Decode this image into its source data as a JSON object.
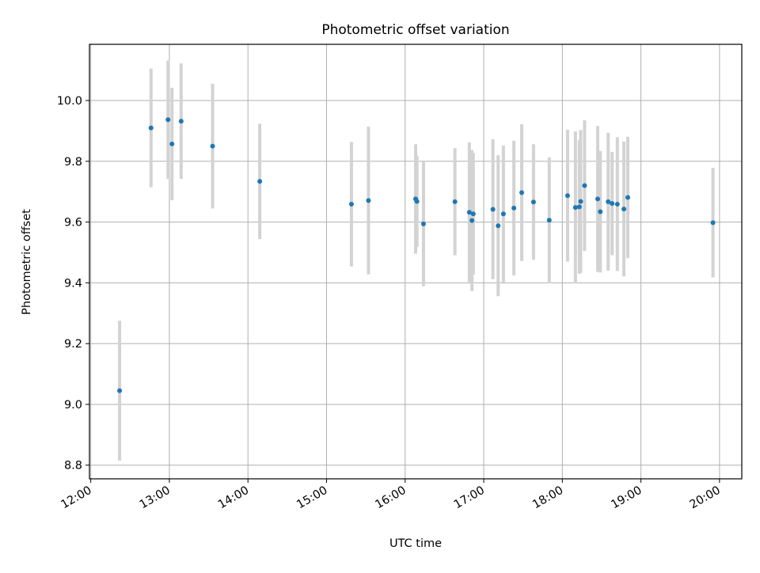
{
  "chart_data": {
    "type": "scatter",
    "title": "Photometric offset variation",
    "xlabel": "UTC time",
    "ylabel": "Photometric offset",
    "x_ticks": [
      "12:00",
      "13:00",
      "14:00",
      "15:00",
      "16:00",
      "17:00",
      "18:00",
      "19:00",
      "20:00"
    ],
    "y_ticks": [
      "8.8",
      "9.0",
      "9.2",
      "9.4",
      "9.6",
      "9.8",
      "10.0"
    ],
    "xlim": [
      "11:59",
      "20:17"
    ],
    "ylim": [
      8.755,
      10.185
    ],
    "grid": true,
    "colors": {
      "point": "#1f77b4",
      "errorbar": "#d3d3d3",
      "grid": "#b0b0b0"
    },
    "points": [
      {
        "x": "12:22",
        "y": 9.045,
        "yerr": 0.23
      },
      {
        "x": "12:46",
        "y": 9.91,
        "yerr": 0.195
      },
      {
        "x": "12:59",
        "y": 9.937,
        "yerr": 0.195
      },
      {
        "x": "13:02",
        "y": 9.857,
        "yerr": 0.185
      },
      {
        "x": "13:09",
        "y": 9.932,
        "yerr": 0.19
      },
      {
        "x": "13:33",
        "y": 9.85,
        "yerr": 0.205
      },
      {
        "x": "14:09",
        "y": 9.734,
        "yerr": 0.19
      },
      {
        "x": "15:19",
        "y": 9.659,
        "yerr": 0.205
      },
      {
        "x": "15:32",
        "y": 9.671,
        "yerr": 0.243
      },
      {
        "x": "16:08",
        "y": 9.676,
        "yerr": 0.18
      },
      {
        "x": "16:09",
        "y": 9.668,
        "yerr": 0.15
      },
      {
        "x": "16:14",
        "y": 9.594,
        "yerr": 0.205
      },
      {
        "x": "16:38",
        "y": 9.667,
        "yerr": 0.176
      },
      {
        "x": "16:49",
        "y": 9.632,
        "yerr": 0.23
      },
      {
        "x": "16:51",
        "y": 9.605,
        "yerr": 0.232
      },
      {
        "x": "16:52",
        "y": 9.627,
        "yerr": 0.2
      },
      {
        "x": "17:07",
        "y": 9.642,
        "yerr": 0.23
      },
      {
        "x": "17:11",
        "y": 9.588,
        "yerr": 0.232
      },
      {
        "x": "17:15",
        "y": 9.627,
        "yerr": 0.225
      },
      {
        "x": "17:23",
        "y": 9.646,
        "yerr": 0.222
      },
      {
        "x": "17:29",
        "y": 9.697,
        "yerr": 0.225
      },
      {
        "x": "17:38",
        "y": 9.666,
        "yerr": 0.19
      },
      {
        "x": "17:50",
        "y": 9.606,
        "yerr": 0.207
      },
      {
        "x": "18:04",
        "y": 9.687,
        "yerr": 0.217
      },
      {
        "x": "18:10",
        "y": 9.648,
        "yerr": 0.25
      },
      {
        "x": "18:13",
        "y": 9.65,
        "yerr": 0.22
      },
      {
        "x": "18:14",
        "y": 9.668,
        "yerr": 0.235
      },
      {
        "x": "18:17",
        "y": 9.72,
        "yerr": 0.215
      },
      {
        "x": "18:27",
        "y": 9.676,
        "yerr": 0.24
      },
      {
        "x": "18:29",
        "y": 9.634,
        "yerr": 0.2
      },
      {
        "x": "18:35",
        "y": 9.667,
        "yerr": 0.227
      },
      {
        "x": "18:38",
        "y": 9.661,
        "yerr": 0.17
      },
      {
        "x": "18:42",
        "y": 9.659,
        "yerr": 0.22
      },
      {
        "x": "18:47",
        "y": 9.643,
        "yerr": 0.222
      },
      {
        "x": "18:50",
        "y": 9.681,
        "yerr": 0.2
      },
      {
        "x": "19:55",
        "y": 9.598,
        "yerr": 0.18
      }
    ]
  }
}
